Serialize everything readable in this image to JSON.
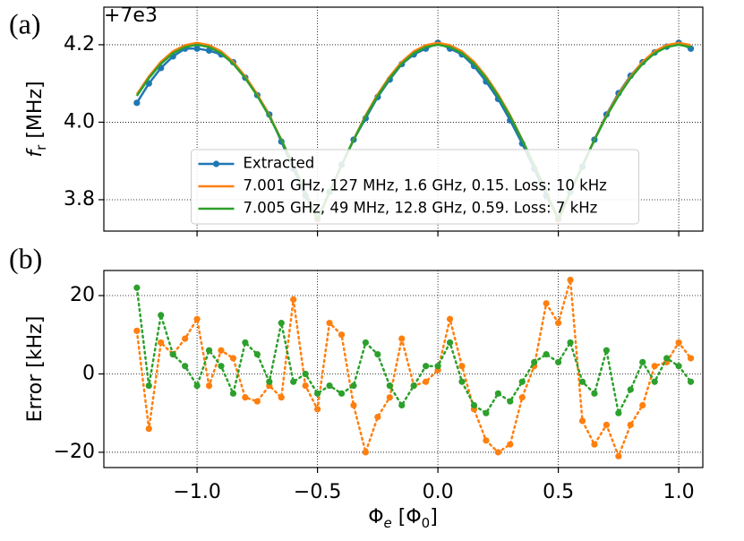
{
  "chart_data": [
    {
      "type": "line",
      "panel_label": "(a)",
      "offset_text": "+7e3",
      "ylabel": [
        "f",
        "r",
        " [MHz]"
      ],
      "xlim": [
        -1.387,
        1.1
      ],
      "xticks": [
        {
          "value": -1,
          "label": "−1.0"
        },
        {
          "value": -0.5,
          "label": "−0.5"
        },
        {
          "value": 0,
          "label": "0.0"
        },
        {
          "value": 0.5,
          "label": "0.5"
        },
        {
          "value": 1,
          "label": "1.0"
        }
      ],
      "ylim": [
        3.719,
        4.297
      ],
      "yticks": [
        {
          "value": 3.8,
          "label": "3.8"
        },
        {
          "value": 4,
          "label": "4.0"
        },
        {
          "value": 4.2,
          "label": "4.2"
        }
      ],
      "grid": true,
      "legend": "lower center",
      "x": [
        -1.25,
        -1.2,
        -1.15,
        -1.1,
        -1.05,
        -1,
        -0.95,
        -0.9,
        -0.85,
        -0.8,
        -0.75,
        -0.7,
        -0.65,
        -0.6,
        -0.55,
        -0.5,
        -0.45,
        -0.4,
        -0.35,
        -0.3,
        -0.25,
        -0.2,
        -0.15,
        -0.1,
        -0.05,
        0,
        0.05,
        0.1,
        0.15,
        0.2,
        0.25,
        0.3,
        0.35,
        0.4,
        0.45,
        0.5,
        0.55,
        0.6,
        0.65,
        0.7,
        0.75,
        0.8,
        0.85,
        0.9,
        0.95,
        1,
        1.05
      ],
      "series": [
        {
          "name": "Extracted",
          "color": "#1f77b4",
          "marker": true,
          "linestyle": "solid",
          "values": [
            4.05,
            4.1,
            4.14,
            4.17,
            4.19,
            4.19,
            4.185,
            4.175,
            4.155,
            4.115,
            4.07,
            4.02,
            3.95,
            3.88,
            3.81,
            3.75,
            3.82,
            3.89,
            3.955,
            4.01,
            4.065,
            4.11,
            4.15,
            4.175,
            4.19,
            4.205,
            4.19,
            4.175,
            4.145,
            4.105,
            4.06,
            4.005,
            3.945,
            3.88,
            3.81,
            3.75,
            3.82,
            3.885,
            3.955,
            4.02,
            4.075,
            4.12,
            4.155,
            4.18,
            4.195,
            4.205,
            4.19
          ]
        },
        {
          "name": "7.001 GHz, 127 MHz, 1.6 GHz, 0.15. Loss: 10 kHz",
          "color": "#ff7f0e",
          "marker": false,
          "linestyle": "solid",
          "values": [
            4.072,
            4.118,
            4.156,
            4.183,
            4.199,
            4.205,
            4.199,
            4.183,
            4.156,
            4.118,
            4.072,
            4.018,
            3.955,
            3.888,
            3.818,
            3.745,
            3.818,
            3.888,
            3.955,
            4.018,
            4.072,
            4.118,
            4.156,
            4.183,
            4.199,
            4.205,
            4.199,
            4.183,
            4.156,
            4.118,
            4.072,
            4.018,
            3.955,
            3.888,
            3.818,
            3.745,
            3.818,
            3.888,
            3.955,
            4.018,
            4.072,
            4.118,
            4.156,
            4.183,
            4.199,
            4.205,
            4.199
          ]
        },
        {
          "name": "7.005 GHz, 49 MHz, 12.8 GHz, 0.59. Loss: 7 kHz",
          "color": "#2ca02c",
          "marker": false,
          "linestyle": "solid",
          "values": [
            4.068,
            4.114,
            4.151,
            4.178,
            4.194,
            4.2,
            4.194,
            4.178,
            4.151,
            4.114,
            4.068,
            4.015,
            3.954,
            3.889,
            3.82,
            3.75,
            3.82,
            3.889,
            3.954,
            4.015,
            4.068,
            4.114,
            4.151,
            4.178,
            4.194,
            4.2,
            4.194,
            4.178,
            4.151,
            4.114,
            4.068,
            4.015,
            3.954,
            3.889,
            3.82,
            3.75,
            3.82,
            3.889,
            3.954,
            4.015,
            4.068,
            4.114,
            4.151,
            4.178,
            4.194,
            4.2,
            4.194
          ]
        }
      ]
    },
    {
      "type": "line",
      "panel_label": "(b)",
      "ylabel": "Error [kHz]",
      "xlabel": [
        "Φ",
        "e",
        " [Φ",
        "0",
        "]"
      ],
      "xlim": [
        -1.387,
        1.1
      ],
      "xticks": [
        {
          "value": -1,
          "label": "−1.0"
        },
        {
          "value": -0.5,
          "label": "−0.5"
        },
        {
          "value": 0,
          "label": "0.0"
        },
        {
          "value": 0.5,
          "label": "0.5"
        },
        {
          "value": 1,
          "label": "1.0"
        }
      ],
      "ylim": [
        -23.9,
        26.4
      ],
      "yticks": [
        {
          "value": -20,
          "label": "−20"
        },
        0,
        20
      ],
      "grid": true,
      "x": [
        -1.25,
        -1.2,
        -1.15,
        -1.1,
        -1.05,
        -1,
        -0.95,
        -0.9,
        -0.85,
        -0.8,
        -0.75,
        -0.7,
        -0.65,
        -0.6,
        -0.55,
        -0.5,
        -0.45,
        -0.4,
        -0.35,
        -0.3,
        -0.25,
        -0.2,
        -0.15,
        -0.1,
        -0.05,
        0,
        0.05,
        0.1,
        0.15,
        0.2,
        0.25,
        0.3,
        0.35,
        0.4,
        0.45,
        0.5,
        0.55,
        0.6,
        0.65,
        0.7,
        0.75,
        0.8,
        0.85,
        0.9,
        0.95,
        1,
        1.05
      ],
      "series": [
        {
          "color": "#ff7f0e",
          "marker": true,
          "linestyle": "dotted",
          "values": [
            11,
            -14,
            8,
            5,
            9,
            14,
            -3,
            6,
            4,
            -6,
            -7,
            -3,
            -6,
            19,
            -3,
            -9,
            13,
            10,
            -8,
            -20,
            -11,
            -6,
            9,
            -3,
            -2,
            1,
            14,
            2,
            -9,
            -17,
            -20,
            -18,
            -6,
            2,
            18,
            13,
            24,
            -12,
            -18,
            -13,
            -21,
            -13,
            -8,
            2,
            3,
            8,
            4
          ]
        },
        {
          "color": "#2ca02c",
          "marker": true,
          "linestyle": "dotted",
          "values": [
            22,
            -3,
            15,
            5,
            2,
            -3,
            6,
            2,
            -5,
            8,
            5,
            -2,
            13,
            -2,
            0,
            -5,
            -3,
            -5,
            -3,
            8,
            5,
            -3,
            -8,
            -3,
            2,
            2,
            8,
            -2,
            -8,
            -10,
            -5,
            -7,
            -2,
            3,
            5,
            3,
            8,
            -2,
            -5,
            6,
            -10,
            -4,
            3,
            -2,
            4,
            2,
            -2
          ]
        }
      ]
    }
  ]
}
